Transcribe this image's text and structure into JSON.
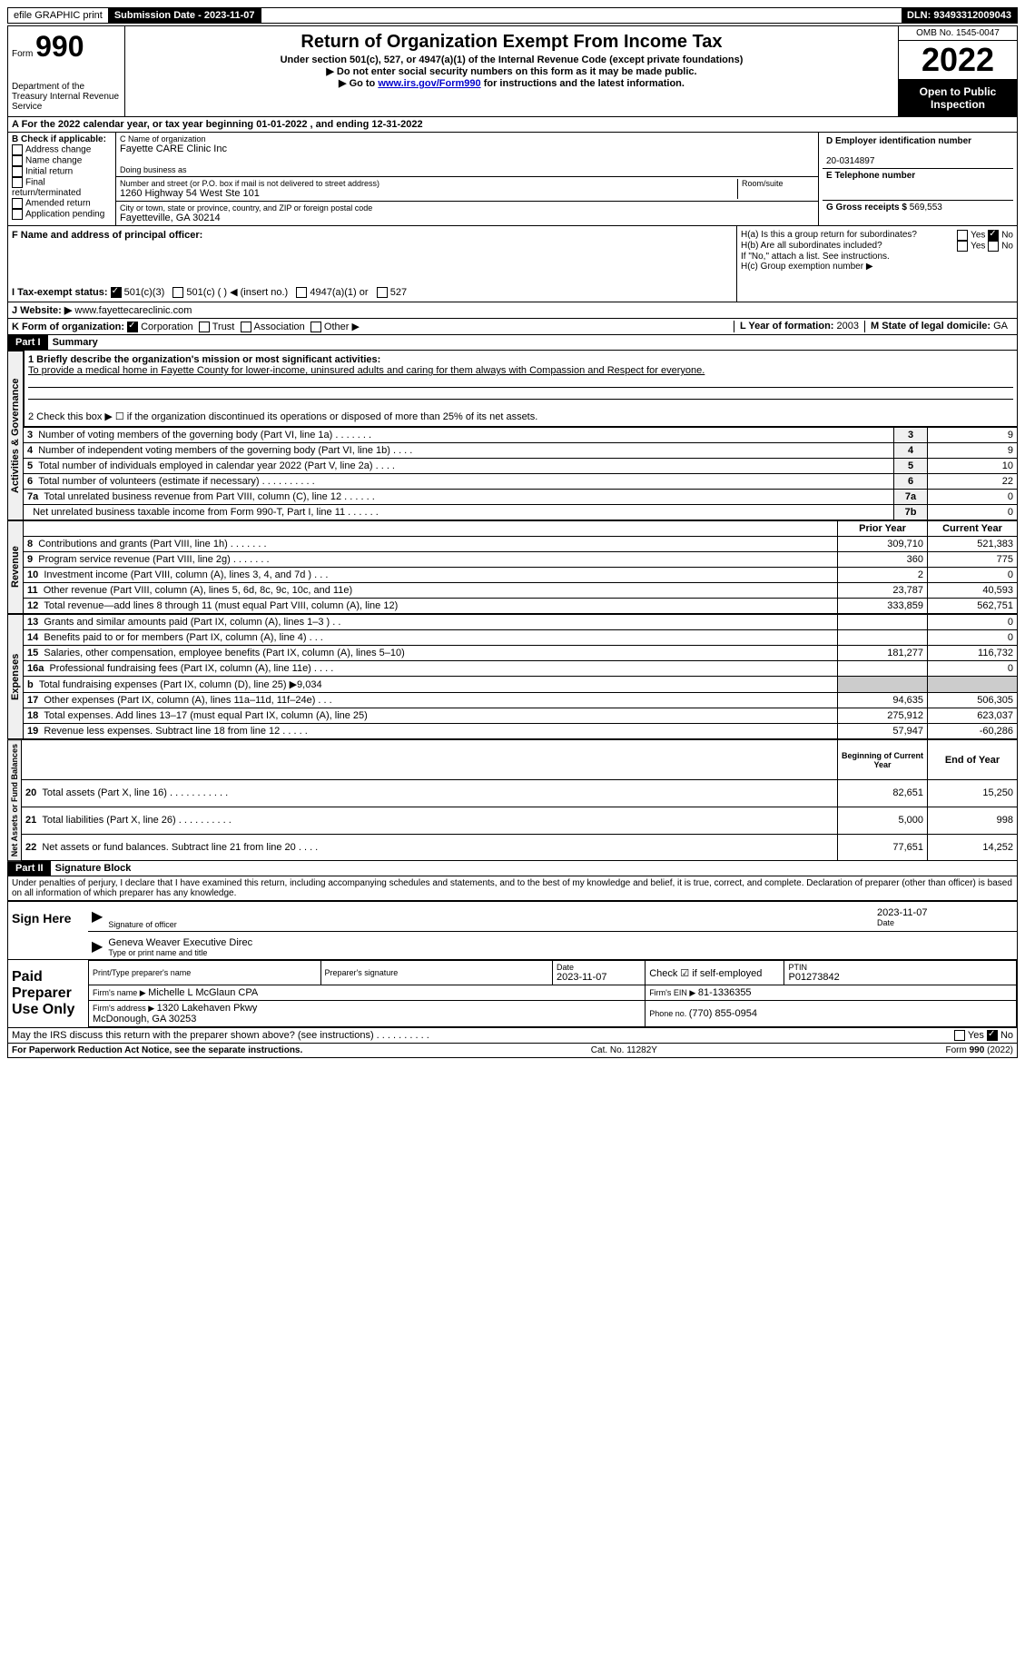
{
  "topbar": {
    "efile": "efile GRAPHIC print",
    "submission_label": "Submission Date - ",
    "submission_date": "2023-11-07",
    "dln_label": "DLN: ",
    "dln": "93493312009043"
  },
  "header": {
    "form_word": "Form",
    "form_num": "990",
    "dept": "Department of the Treasury Internal Revenue Service",
    "title": "Return of Organization Exempt From Income Tax",
    "sub1": "Under section 501(c), 527, or 4947(a)(1) of the Internal Revenue Code (except private foundations)",
    "sub2": "▶ Do not enter social security numbers on this form as it may be made public.",
    "sub3_pre": "▶ Go to ",
    "sub3_link": "www.irs.gov/Form990",
    "sub3_post": " for instructions and the latest information.",
    "omb": "OMB No. 1545-0047",
    "year": "2022",
    "inspect1": "Open to Public",
    "inspect2": "Inspection"
  },
  "line_a": "A For the 2022 calendar year, or tax year beginning 01-01-2022   , and ending 12-31-2022",
  "section_b": {
    "label": "B Check if applicable:",
    "opts": [
      "Address change",
      "Name change",
      "Initial return",
      "Final return/terminated",
      "Amended return",
      "Application pending"
    ]
  },
  "section_c": {
    "label_name": "C Name of organization",
    "org_name": "Fayette CARE Clinic Inc",
    "dba_label": "Doing business as",
    "addr_label": "Number and street (or P.O. box if mail is not delivered to street address)",
    "room_label": "Room/suite",
    "addr": "1260 Highway 54 West Ste 101",
    "city_label": "City or town, state or province, country, and ZIP or foreign postal code",
    "city": "Fayetteville, GA  30214"
  },
  "section_d": {
    "label": "D Employer identification number",
    "ein": "20-0314897",
    "e_label": "E Telephone number",
    "g_label": "G Gross receipts $ ",
    "g_val": "569,553"
  },
  "section_f": "F  Name and address of principal officer:",
  "section_h": {
    "a": "H(a)  Is this a group return for subordinates?",
    "b": "H(b)  Are all subordinates included?",
    "note": "If \"No,\" attach a list. See instructions.",
    "c": "H(c)  Group exemption number ▶",
    "yes": "Yes",
    "no": "No"
  },
  "section_i": {
    "label": "I  Tax-exempt status:",
    "opts": [
      "501(c)(3)",
      "501(c) (   ) ◀ (insert no.)",
      "4947(a)(1) or",
      "527"
    ]
  },
  "section_j": {
    "label": "J  Website: ▶",
    "val": "www.fayettecareclinic.com"
  },
  "section_k": {
    "label": "K Form of organization:",
    "opts": [
      "Corporation",
      "Trust",
      "Association",
      "Other ▶"
    ],
    "l_label": "L Year of formation: ",
    "l_val": "2003",
    "m_label": "M State of legal domicile: ",
    "m_val": "GA"
  },
  "part1": {
    "header": "Part I",
    "title": "Summary",
    "line1_label": "1  Briefly describe the organization's mission or most significant activities:",
    "line1_text": "To provide a medical home in Fayette County for lower-income, uninsured adults and caring for them always with Compassion and Respect for everyone.",
    "line2": "2   Check this box ▶ ☐  if the organization discontinued its operations or disposed of more than 25% of its net assets.",
    "vert_activities": "Activities & Governance",
    "vert_revenue": "Revenue",
    "vert_expenses": "Expenses",
    "vert_netassets": "Net Assets or Fund Balances",
    "rows_gov": [
      {
        "n": "3",
        "t": "Number of voting members of the governing body (Part VI, line 1a)  .  .  .  .  .  .  .",
        "l": "3",
        "v": "9"
      },
      {
        "n": "4",
        "t": "Number of independent voting members of the governing body (Part VI, line 1b)  .  .  .  .",
        "l": "4",
        "v": "9"
      },
      {
        "n": "5",
        "t": "Total number of individuals employed in calendar year 2022 (Part V, line 2a)  .  .  .  .",
        "l": "5",
        "v": "10"
      },
      {
        "n": "6",
        "t": "Total number of volunteers (estimate if necessary)  .  .  .  .  .  .  .  .  .  .",
        "l": "6",
        "v": "22"
      },
      {
        "n": "7a",
        "t": "Total unrelated business revenue from Part VIII, column (C), line 12  .  .  .  .  .  .",
        "l": "7a",
        "v": "0"
      },
      {
        "n": "",
        "t": "Net unrelated business taxable income from Form 990-T, Part I, line 11  .  .  .  .  .  .",
        "l": "7b",
        "v": "0"
      }
    ],
    "col_headers": {
      "prior": "Prior Year",
      "current": "Current Year"
    },
    "rows_rev": [
      {
        "n": "8",
        "t": "Contributions and grants (Part VIII, line 1h)  .  .  .  .  .  .  .",
        "p": "309,710",
        "c": "521,383"
      },
      {
        "n": "9",
        "t": "Program service revenue (Part VIII, line 2g)  .  .  .  .  .  .  .",
        "p": "360",
        "c": "775"
      },
      {
        "n": "10",
        "t": "Investment income (Part VIII, column (A), lines 3, 4, and 7d )  .  .  .",
        "p": "2",
        "c": "0"
      },
      {
        "n": "11",
        "t": "Other revenue (Part VIII, column (A), lines 5, 6d, 8c, 9c, 10c, and 11e)",
        "p": "23,787",
        "c": "40,593"
      },
      {
        "n": "12",
        "t": "Total revenue—add lines 8 through 11 (must equal Part VIII, column (A), line 12)",
        "p": "333,859",
        "c": "562,751"
      }
    ],
    "rows_exp": [
      {
        "n": "13",
        "t": "Grants and similar amounts paid (Part IX, column (A), lines 1–3 )  .  .",
        "p": "",
        "c": "0"
      },
      {
        "n": "14",
        "t": "Benefits paid to or for members (Part IX, column (A), line 4)  .  .  .",
        "p": "",
        "c": "0"
      },
      {
        "n": "15",
        "t": "Salaries, other compensation, employee benefits (Part IX, column (A), lines 5–10)",
        "p": "181,277",
        "c": "116,732"
      },
      {
        "n": "16a",
        "t": "Professional fundraising fees (Part IX, column (A), line 11e)  .  .  .  .",
        "p": "",
        "c": "0"
      },
      {
        "n": "b",
        "t": "Total fundraising expenses (Part IX, column (D), line 25) ▶9,034",
        "p": "GRAY",
        "c": "GRAY"
      },
      {
        "n": "17",
        "t": "Other expenses (Part IX, column (A), lines 11a–11d, 11f–24e)  .  .  .",
        "p": "94,635",
        "c": "506,305"
      },
      {
        "n": "18",
        "t": "Total expenses. Add lines 13–17 (must equal Part IX, column (A), line 25)",
        "p": "275,912",
        "c": "623,037"
      },
      {
        "n": "19",
        "t": "Revenue less expenses. Subtract line 18 from line 12  .  .  .  .  .",
        "p": "57,947",
        "c": "-60,286"
      }
    ],
    "na_headers": {
      "begin": "Beginning of Current Year",
      "end": "End of Year"
    },
    "rows_na": [
      {
        "n": "20",
        "t": "Total assets (Part X, line 16)  .  .  .  .  .  .  .  .  .  .  .",
        "p": "82,651",
        "c": "15,250"
      },
      {
        "n": "21",
        "t": "Total liabilities (Part X, line 26)  .  .  .  .  .  .  .  .  .  .",
        "p": "5,000",
        "c": "998"
      },
      {
        "n": "22",
        "t": "Net assets or fund balances. Subtract line 21 from line 20  .  .  .  .",
        "p": "77,651",
        "c": "14,252"
      }
    ]
  },
  "part2": {
    "header": "Part II",
    "title": "Signature Block",
    "declaration": "Under penalties of perjury, I declare that I have examined this return, including accompanying schedules and statements, and to the best of my knowledge and belief, it is true, correct, and complete. Declaration of preparer (other than officer) is based on all information of which preparer has any knowledge.",
    "sign_here": "Sign Here",
    "sig_officer": "Signature of officer",
    "sig_date_lbl": "Date",
    "sig_date": "2023-11-07",
    "sig_name": "Geneva Weaver Executive Direc",
    "sig_name_lbl": "Type or print name and title",
    "paid_prep": "Paid Preparer Use Only",
    "prep_name_lbl": "Print/Type preparer's name",
    "prep_sig_lbl": "Preparer's signature",
    "prep_date_lbl": "Date",
    "prep_date": "2023-11-07",
    "prep_check": "Check ☑ if self-employed",
    "ptin_lbl": "PTIN",
    "ptin": "P01273842",
    "firm_name_lbl": "Firm's name  ▶ ",
    "firm_name": "Michelle L McGlaun CPA",
    "firm_ein_lbl": "Firm's EIN ▶ ",
    "firm_ein": "81-1336355",
    "firm_addr_lbl": "Firm's address ▶ ",
    "firm_addr": "1320 Lakehaven Pkwy",
    "firm_city": "McDonough, GA  30253",
    "phone_lbl": "Phone no. ",
    "phone": "(770) 855-0954",
    "discuss": "May the IRS discuss this return with the preparer shown above? (see instructions)  .  .  .  .  .  .  .  .  .  ."
  },
  "footer": {
    "left": "For Paperwork Reduction Act Notice, see the separate instructions.",
    "mid": "Cat. No. 11282Y",
    "right": "Form 990 (2022)"
  }
}
